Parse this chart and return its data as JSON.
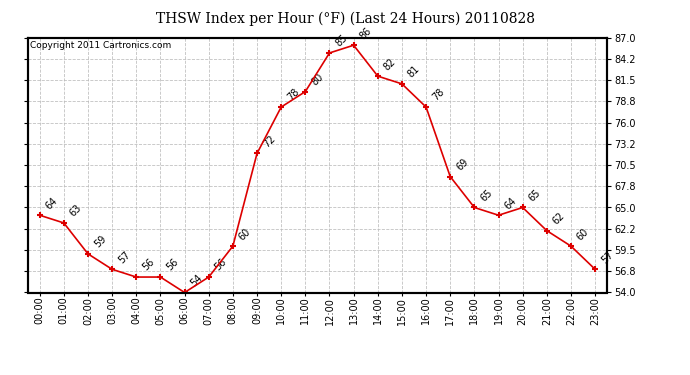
{
  "title": "THSW Index per Hour (°F) (Last 24 Hours) 20110828",
  "copyright": "Copyright 2011 Cartronics.com",
  "hours": [
    0,
    1,
    2,
    3,
    4,
    5,
    6,
    7,
    8,
    9,
    10,
    11,
    12,
    13,
    14,
    15,
    16,
    17,
    18,
    19,
    20,
    21,
    22,
    23
  ],
  "values": [
    64,
    63,
    59,
    57,
    56,
    56,
    54,
    56,
    60,
    72,
    78,
    80,
    85,
    86,
    82,
    81,
    78,
    69,
    65,
    64,
    65,
    62,
    60,
    57
  ],
  "xlabels": [
    "00:00",
    "01:00",
    "02:00",
    "03:00",
    "04:00",
    "05:00",
    "06:00",
    "07:00",
    "08:00",
    "09:00",
    "10:00",
    "11:00",
    "12:00",
    "13:00",
    "14:00",
    "15:00",
    "16:00",
    "17:00",
    "18:00",
    "19:00",
    "20:00",
    "21:00",
    "22:00",
    "23:00"
  ],
  "ylim": [
    54.0,
    87.0
  ],
  "yticks": [
    54.0,
    56.8,
    59.5,
    62.2,
    65.0,
    67.8,
    70.5,
    73.2,
    76.0,
    78.8,
    81.5,
    84.2,
    87.0
  ],
  "line_color": "#dd0000",
  "marker_color": "#dd0000",
  "bg_color": "#ffffff",
  "plot_bg": "#ffffff",
  "grid_color": "#bbbbbb",
  "title_fontsize": 10,
  "tick_fontsize": 7,
  "annotation_fontsize": 7,
  "copyright_fontsize": 6.5
}
